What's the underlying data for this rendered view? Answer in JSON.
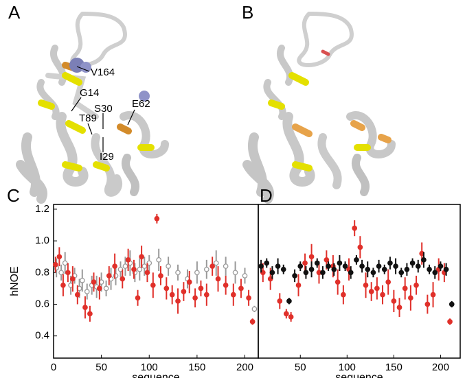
{
  "structures": [
    {
      "label": "A",
      "annotations": [
        "V164",
        "G14",
        "E62",
        "S30",
        "T89",
        "I29"
      ]
    },
    {
      "label": "B"
    }
  ],
  "chart_data": [
    {
      "type": "scatter",
      "panel_label": "C",
      "x_label": "sequence",
      "y_label": "hNOE",
      "xlim": [
        0,
        214
      ],
      "xticks": [
        0,
        50,
        100,
        150,
        200
      ],
      "ylim": [
        0.26,
        1.23
      ],
      "yticks": [
        0.4,
        0.6,
        0.8,
        {
          "value": 1.0,
          "label": "1.0"
        },
        1.2
      ],
      "series": [
        {
          "color": "#9a9a9a",
          "filled": false,
          "x": [
            3,
            8,
            12,
            18,
            22,
            27,
            30,
            35,
            40,
            45,
            50,
            55,
            60,
            65,
            70,
            75,
            80,
            85,
            90,
            95,
            100,
            110,
            120,
            130,
            140,
            150,
            160,
            170,
            180,
            190,
            200,
            210
          ],
          "values": [
            0.83,
            0.8,
            0.86,
            0.72,
            0.78,
            0.7,
            0.75,
            0.68,
            0.72,
            0.71,
            0.74,
            0.7,
            0.76,
            0.78,
            0.82,
            0.84,
            0.86,
            0.8,
            0.82,
            0.84,
            0.86,
            0.88,
            0.84,
            0.8,
            0.76,
            0.8,
            0.82,
            0.86,
            0.84,
            0.8,
            0.78,
            0.57
          ],
          "errors": [
            0.06,
            0.05,
            0.07,
            0.06,
            0.05,
            0.06,
            0.07,
            0.05,
            0.06,
            0.07,
            0.06,
            0.05,
            0.07,
            0.06,
            0.05,
            0.06,
            0.08,
            0.06,
            0.07,
            0.06,
            0.05,
            0.07,
            0.06,
            0.05,
            0.06,
            0.07,
            0.06,
            0.08,
            0.06,
            0.07,
            0.05,
            0.02
          ]
        },
        {
          "color": "#e0302a",
          "filled": true,
          "x": [
            2,
            6,
            10,
            15,
            20,
            25,
            33,
            38,
            42,
            48,
            58,
            64,
            72,
            78,
            84,
            88,
            92,
            98,
            104,
            108,
            112,
            118,
            124,
            130,
            136,
            142,
            148,
            154,
            160,
            166,
            172,
            180,
            188,
            196,
            204,
            208
          ],
          "values": [
            0.85,
            0.9,
            0.72,
            0.8,
            0.76,
            0.66,
            0.58,
            0.54,
            0.74,
            0.7,
            0.78,
            0.84,
            0.76,
            0.88,
            0.82,
            0.64,
            0.9,
            0.8,
            0.72,
            1.14,
            0.78,
            0.7,
            0.66,
            0.62,
            0.68,
            0.74,
            0.64,
            0.7,
            0.66,
            0.84,
            0.76,
            0.72,
            0.66,
            0.7,
            0.64,
            0.49
          ],
          "errors": [
            0.05,
            0.06,
            0.07,
            0.06,
            0.08,
            0.06,
            0.07,
            0.05,
            0.06,
            0.07,
            0.06,
            0.08,
            0.06,
            0.07,
            0.06,
            0.05,
            0.07,
            0.06,
            0.08,
            0.03,
            0.06,
            0.07,
            0.06,
            0.08,
            0.06,
            0.07,
            0.06,
            0.05,
            0.07,
            0.06,
            0.08,
            0.06,
            0.07,
            0.06,
            0.05,
            0.02
          ]
        }
      ]
    },
    {
      "type": "scatter",
      "panel_label": "D",
      "x_label": "sequence",
      "xlim": [
        5,
        221
      ],
      "xticks": [
        50,
        100,
        150,
        200
      ],
      "ylim": [
        0.26,
        1.23
      ],
      "series": [
        {
          "color": "#e0302a",
          "filled": true,
          "x": [
            10,
            18,
            28,
            35,
            40,
            48,
            55,
            62,
            70,
            78,
            85,
            90,
            96,
            102,
            108,
            114,
            120,
            126,
            132,
            138,
            144,
            150,
            156,
            162,
            168,
            174,
            180,
            186,
            192,
            198,
            204,
            210
          ],
          "values": [
            0.8,
            0.76,
            0.62,
            0.54,
            0.52,
            0.72,
            0.86,
            0.9,
            0.8,
            0.88,
            0.84,
            0.74,
            0.66,
            0.82,
            1.08,
            0.96,
            0.72,
            0.68,
            0.7,
            0.66,
            0.74,
            0.62,
            0.58,
            0.7,
            0.64,
            0.72,
            0.92,
            0.6,
            0.66,
            0.82,
            0.8,
            0.49
          ],
          "errors": [
            0.06,
            0.07,
            0.05,
            0.03,
            0.03,
            0.07,
            0.06,
            0.08,
            0.07,
            0.06,
            0.07,
            0.08,
            0.06,
            0.07,
            0.05,
            0.07,
            0.08,
            0.06,
            0.07,
            0.06,
            0.08,
            0.07,
            0.06,
            0.07,
            0.08,
            0.06,
            0.07,
            0.06,
            0.08,
            0.07,
            0.06,
            0.02
          ]
        },
        {
          "color": "#111111",
          "filled": true,
          "x": [
            8,
            14,
            20,
            26,
            32,
            38,
            44,
            50,
            56,
            62,
            68,
            74,
            80,
            86,
            92,
            98,
            104,
            110,
            116,
            122,
            128,
            134,
            140,
            146,
            152,
            158,
            164,
            170,
            176,
            182,
            188,
            194,
            200,
            206,
            212
          ],
          "values": [
            0.84,
            0.86,
            0.8,
            0.84,
            0.82,
            0.62,
            0.78,
            0.84,
            0.8,
            0.82,
            0.86,
            0.8,
            0.84,
            0.82,
            0.86,
            0.84,
            0.8,
            0.88,
            0.84,
            0.82,
            0.8,
            0.84,
            0.82,
            0.86,
            0.84,
            0.8,
            0.82,
            0.86,
            0.84,
            0.88,
            0.82,
            0.8,
            0.84,
            0.82,
            0.6
          ],
          "errors": [
            0.04,
            0.03,
            0.04,
            0.05,
            0.03,
            0.02,
            0.04,
            0.03,
            0.04,
            0.05,
            0.03,
            0.04,
            0.03,
            0.04,
            0.05,
            0.03,
            0.04,
            0.03,
            0.04,
            0.05,
            0.03,
            0.04,
            0.03,
            0.04,
            0.05,
            0.03,
            0.04,
            0.03,
            0.04,
            0.05,
            0.03,
            0.04,
            0.03,
            0.04,
            0.02
          ]
        }
      ]
    }
  ]
}
